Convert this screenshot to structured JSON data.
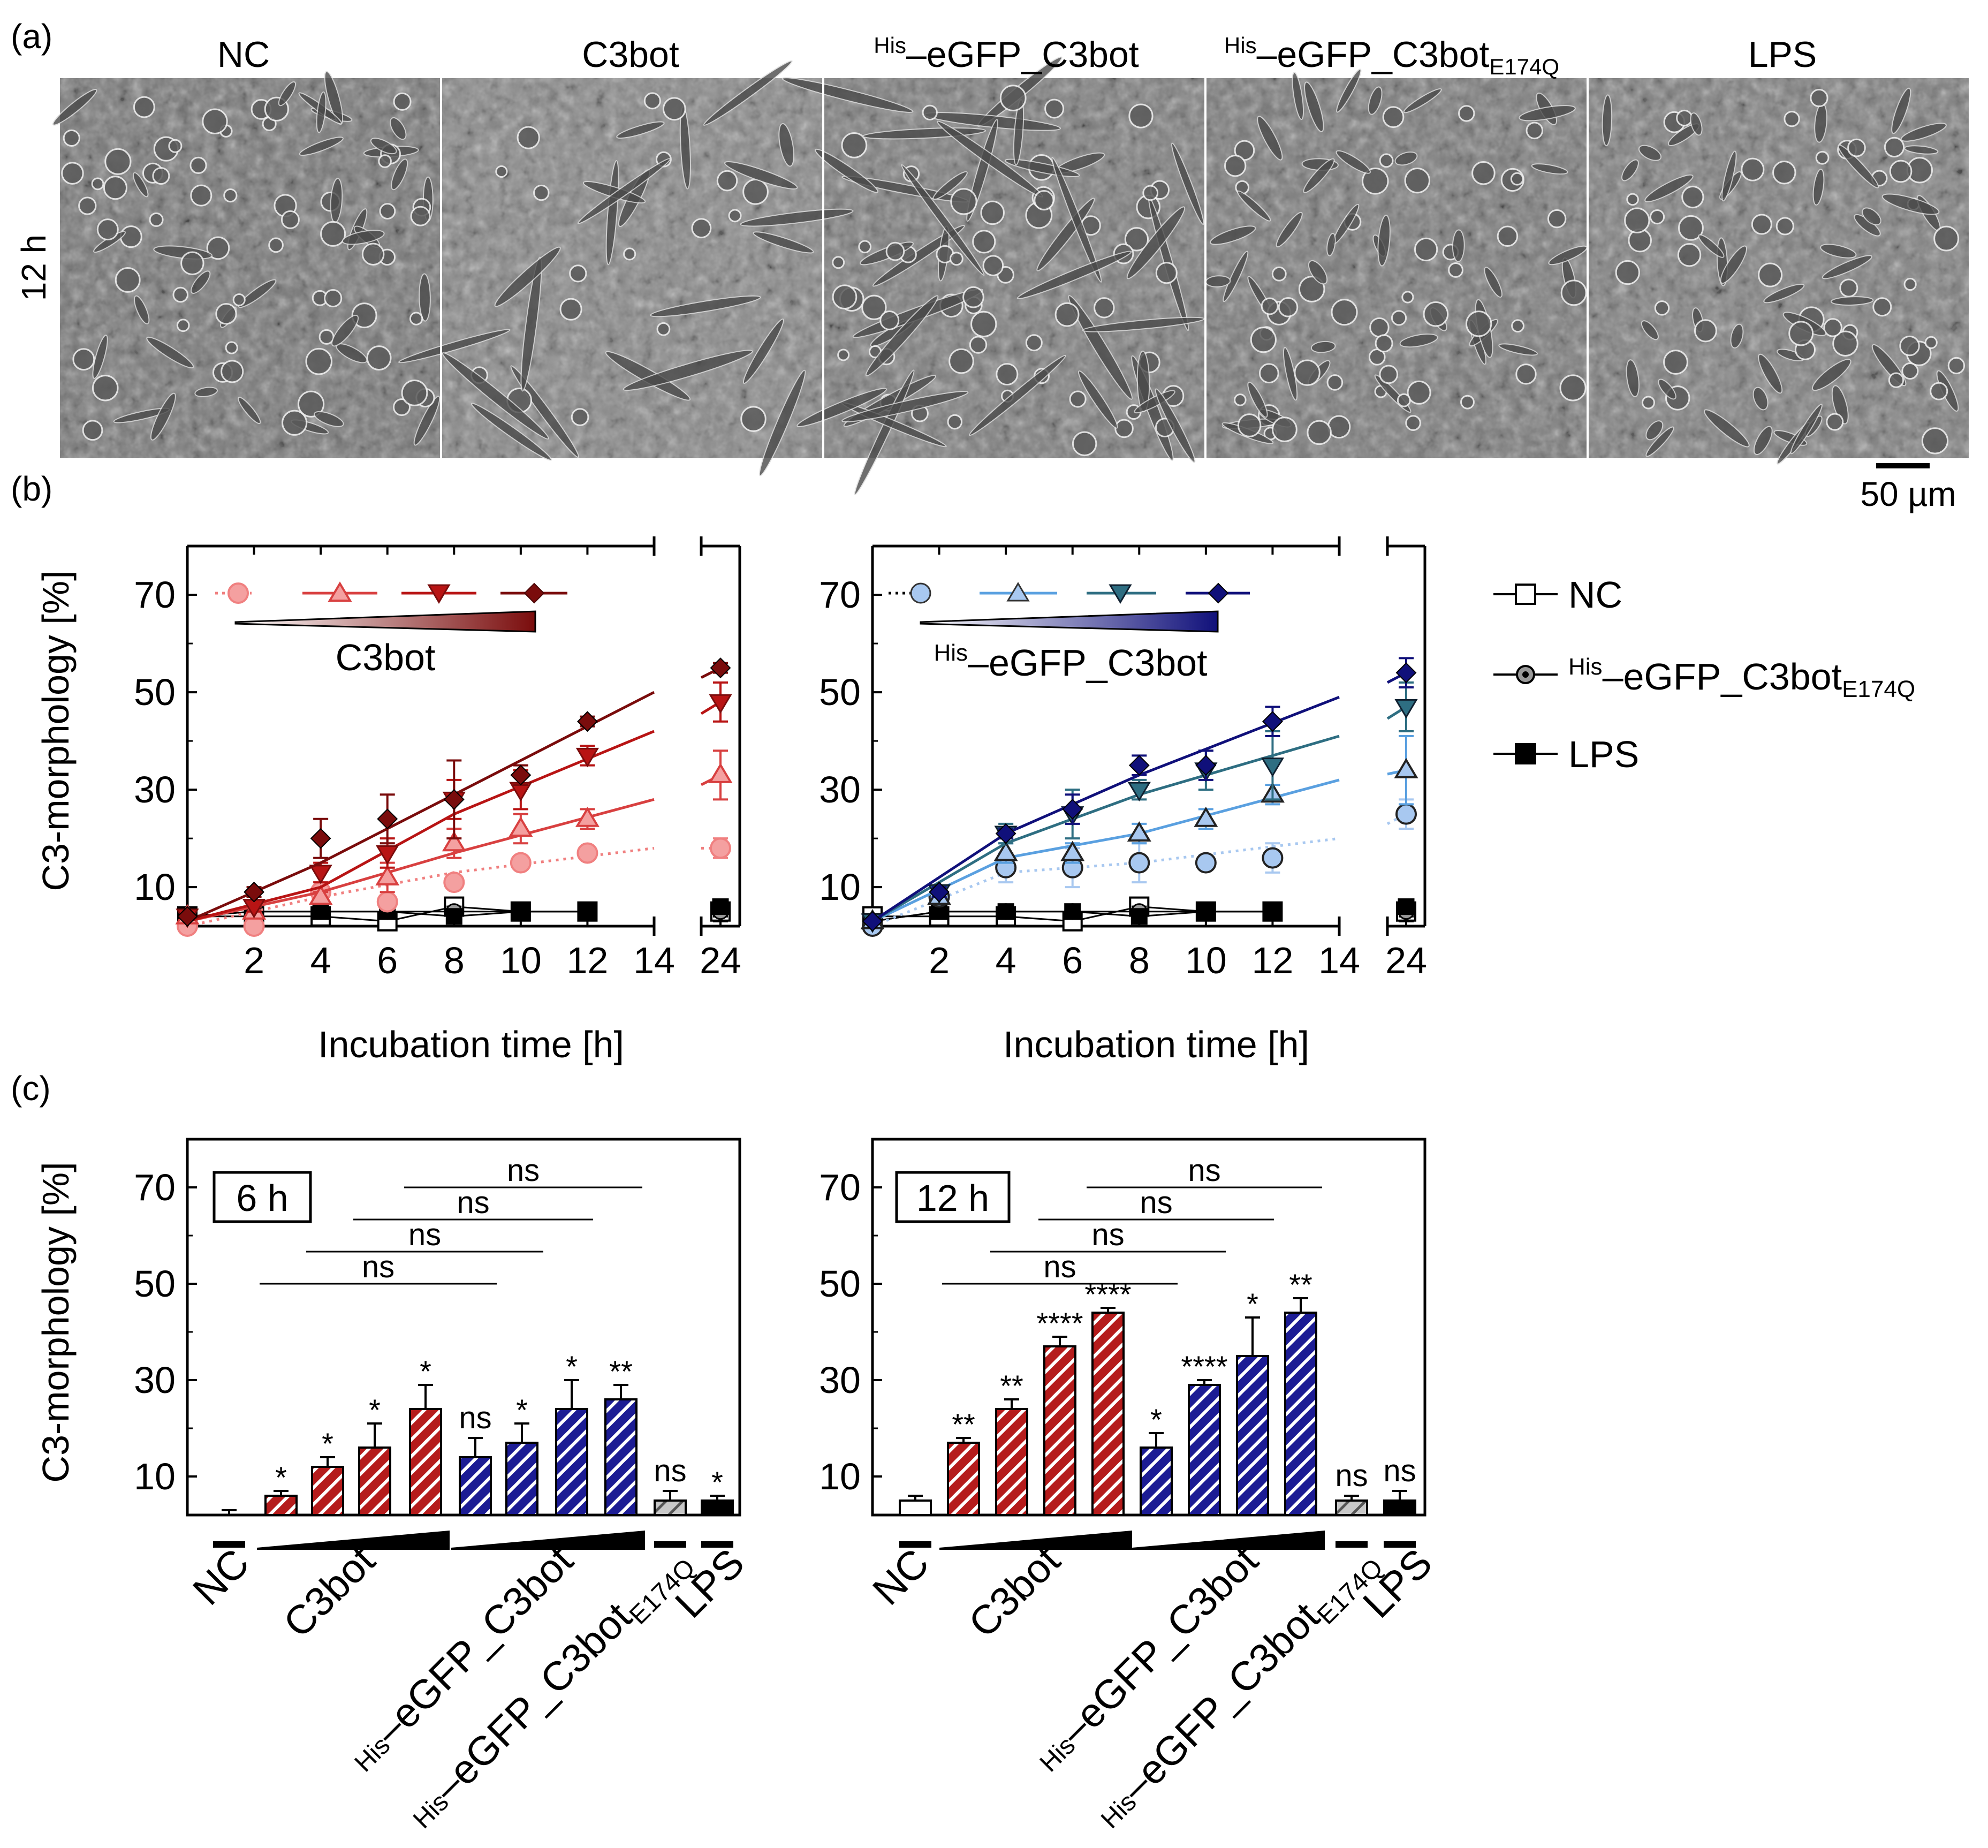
{
  "labels": {
    "panel_a": "(a)",
    "panel_b": "(b)",
    "panel_c": "(c)",
    "row_label": "12 h",
    "scale_bar": "50 µm",
    "his": "His",
    "dash": "–",
    "egfp": "eGFP_C3bot",
    "e174q": "E174Q",
    "c3bot": "C3bot",
    "nc": "NC",
    "lps": "LPS",
    "ylabel": "C3-morphology [%]",
    "xlabel": "Incubation time [h]"
  },
  "colors": {
    "red_1": "#f08080",
    "red_2": "#d84040",
    "red_3": "#b81414",
    "red_4": "#7a0c0c",
    "blue_1": "#a8c8f0",
    "blue_2": "#5aa0e0",
    "blue_3": "#2e6e82",
    "blue_4": "#10107a",
    "red_bar": "#b51c1c",
    "blue_bar": "#1c1c94",
    "grey_bar": "#b4b4b4"
  },
  "micrographs": [
    {
      "label": "NC"
    },
    {
      "label": "C3bot"
    },
    {
      "label": "eGFP_C3bot",
      "prefix": "His"
    },
    {
      "label": "eGFP_C3bot",
      "prefix": "His",
      "subscript": "E174Q"
    },
    {
      "label": "LPS"
    }
  ],
  "chart_data": [
    {
      "type": "line",
      "panel": "(b) left",
      "title": "C3bot",
      "xlabel": "Incubation time [h]",
      "ylabel": "C3-morphology [%]",
      "xlim": [
        0,
        14
      ],
      "xbreak_ticks": [
        24
      ],
      "ylim": [
        2,
        80
      ],
      "xticks": [
        2,
        4,
        6,
        8,
        10,
        12,
        14
      ],
      "yticks": [
        10,
        30,
        50,
        70
      ],
      "series": [
        {
          "name": "C3bot dose 1",
          "color_key": "red_1",
          "marker": "circle",
          "style": "dotted",
          "x": [
            0,
            2,
            4,
            6,
            8,
            10,
            12,
            24
          ],
          "y": [
            2,
            2,
            9,
            7,
            11,
            15,
            17,
            18
          ],
          "err": [
            0,
            0,
            1,
            1,
            1,
            1,
            1,
            2
          ],
          "fit": [
            [
              0,
              2
            ],
            [
              4,
              8
            ],
            [
              8,
              13
            ],
            [
              14,
              18
            ],
            [
              24,
              18
            ]
          ]
        },
        {
          "name": "C3bot dose 2",
          "color_key": "red_2",
          "marker": "triangle-up",
          "style": "solid",
          "x": [
            0,
            2,
            4,
            6,
            8,
            10,
            12,
            24
          ],
          "y": [
            4,
            5,
            8,
            12,
            19,
            22,
            24,
            33
          ],
          "err": [
            0,
            1,
            1,
            3,
            3,
            3,
            2,
            5
          ],
          "fit": [
            [
              0,
              3
            ],
            [
              4,
              9
            ],
            [
              8,
              17
            ],
            [
              14,
              28
            ],
            [
              24,
              33
            ]
          ]
        },
        {
          "name": "C3bot dose 3",
          "color_key": "red_3",
          "marker": "triangle-down",
          "style": "solid",
          "x": [
            0,
            2,
            4,
            6,
            8,
            10,
            12,
            24
          ],
          "y": [
            4,
            6,
            13,
            17,
            28,
            30,
            37,
            48
          ],
          "err": [
            0,
            1,
            2,
            3,
            4,
            4,
            2,
            4
          ],
          "fit": [
            [
              0,
              3
            ],
            [
              4,
              10
            ],
            [
              8,
              25
            ],
            [
              14,
              42
            ],
            [
              24,
              48
            ]
          ]
        },
        {
          "name": "C3bot dose 4",
          "color_key": "red_4",
          "marker": "diamond",
          "style": "solid",
          "x": [
            0,
            2,
            4,
            6,
            8,
            10,
            12,
            24
          ],
          "y": [
            4,
            9,
            20,
            24,
            28,
            33,
            44,
            55
          ],
          "err": [
            0,
            1,
            4,
            5,
            8,
            2,
            1,
            1
          ],
          "fit": [
            [
              0,
              3
            ],
            [
              4,
              15
            ],
            [
              8,
              29
            ],
            [
              14,
              50
            ],
            [
              24,
              55
            ]
          ]
        },
        {
          "name": "NC",
          "color_key": "black",
          "marker": "square-open",
          "style": "solid",
          "x": [
            0,
            2,
            4,
            6,
            8,
            10,
            12,
            24
          ],
          "y": [
            4,
            4,
            4,
            3,
            6,
            5,
            5,
            5
          ],
          "err": [
            1,
            1,
            2,
            1,
            1,
            1,
            1,
            2
          ]
        },
        {
          "name": "His–eGFP_C3bot E174Q",
          "color_key": "black",
          "marker": "circle-dot",
          "style": "solid",
          "x": [
            0,
            2,
            4,
            6,
            8,
            10,
            12,
            24
          ],
          "y": [
            4,
            5,
            5,
            5,
            5,
            5,
            5,
            5
          ],
          "err": [
            1,
            1,
            1,
            1,
            1,
            1,
            1,
            1
          ]
        },
        {
          "name": "LPS",
          "color_key": "black",
          "marker": "square-filled",
          "style": "solid",
          "x": [
            0,
            2,
            4,
            6,
            8,
            10,
            12,
            24
          ],
          "y": [
            4,
            5,
            5,
            5,
            4,
            5,
            5,
            6
          ],
          "err": [
            1,
            1,
            1,
            1,
            1,
            1,
            1,
            1
          ]
        }
      ]
    },
    {
      "type": "line",
      "panel": "(b) right",
      "title": "His–eGFP_C3bot",
      "xlabel": "Incubation time [h]",
      "ylabel": "",
      "xlim": [
        0,
        14
      ],
      "xbreak_ticks": [
        24
      ],
      "ylim": [
        2,
        80
      ],
      "xticks": [
        2,
        4,
        6,
        8,
        10,
        12,
        14
      ],
      "yticks": [
        10,
        30,
        50,
        70
      ],
      "series": [
        {
          "name": "His–eGFP_C3bot dose 1",
          "color_key": "blue_1",
          "marker": "circle",
          "style": "dotted",
          "x": [
            0,
            2,
            4,
            6,
            8,
            10,
            12,
            24
          ],
          "y": [
            2,
            8,
            14,
            14,
            15,
            15,
            16,
            25
          ],
          "err": [
            0,
            1,
            3,
            4,
            4,
            1,
            3,
            3
          ],
          "fit": [
            [
              0,
              2
            ],
            [
              4,
              13
            ],
            [
              8,
              15
            ],
            [
              14,
              20
            ],
            [
              24,
              25
            ]
          ]
        },
        {
          "name": "His–eGFP_C3bot dose 2",
          "color_key": "blue_2",
          "marker": "triangle-up",
          "style": "solid",
          "x": [
            0,
            2,
            4,
            6,
            8,
            10,
            12,
            24
          ],
          "y": [
            3,
            8,
            17,
            17,
            21,
            24,
            29,
            34
          ],
          "err": [
            0,
            1,
            2,
            2,
            2,
            2,
            2,
            7
          ],
          "fit": [
            [
              0,
              3
            ],
            [
              4,
              16
            ],
            [
              8,
              21
            ],
            [
              14,
              32
            ],
            [
              24,
              34
            ]
          ]
        },
        {
          "name": "His–eGFP_C3bot dose 3",
          "color_key": "blue_3",
          "marker": "triangle-down",
          "style": "solid",
          "x": [
            0,
            2,
            4,
            6,
            8,
            10,
            12,
            24
          ],
          "y": [
            3,
            9,
            21,
            25,
            30,
            34,
            35,
            47
          ],
          "err": [
            0,
            1,
            2,
            5,
            2,
            4,
            7,
            5
          ],
          "fit": [
            [
              0,
              3
            ],
            [
              4,
              19
            ],
            [
              8,
              29
            ],
            [
              14,
              41
            ],
            [
              24,
              47
            ]
          ]
        },
        {
          "name": "His–eGFP_C3bot dose 4",
          "color_key": "blue_4",
          "marker": "diamond",
          "style": "solid",
          "x": [
            0,
            2,
            4,
            6,
            8,
            10,
            12,
            24
          ],
          "y": [
            3,
            9,
            21,
            26,
            35,
            35,
            44,
            54
          ],
          "err": [
            0,
            1,
            1,
            3,
            2,
            3,
            3,
            3
          ],
          "fit": [
            [
              0,
              3
            ],
            [
              4,
              21
            ],
            [
              8,
              33
            ],
            [
              14,
              49
            ],
            [
              24,
              54
            ]
          ]
        },
        {
          "name": "NC",
          "color_key": "black",
          "marker": "square-open",
          "style": "solid",
          "x": [
            0,
            2,
            4,
            6,
            8,
            10,
            12,
            24
          ],
          "y": [
            4,
            4,
            4,
            3,
            6,
            5,
            5,
            5
          ],
          "err": [
            1,
            1,
            2,
            1,
            1,
            1,
            1,
            2
          ]
        },
        {
          "name": "His–eGFP_C3bot E174Q",
          "color_key": "black",
          "marker": "circle-dot",
          "style": "solid",
          "x": [
            0,
            2,
            4,
            6,
            8,
            10,
            12,
            24
          ],
          "y": [
            3,
            5,
            5,
            5,
            5,
            5,
            5,
            5
          ],
          "err": [
            1,
            1,
            1,
            1,
            1,
            1,
            1,
            1
          ]
        },
        {
          "name": "LPS",
          "color_key": "black",
          "marker": "square-filled",
          "style": "solid",
          "x": [
            0,
            2,
            4,
            6,
            8,
            10,
            12,
            24
          ],
          "y": [
            3,
            5,
            5,
            5,
            4,
            5,
            5,
            6
          ],
          "err": [
            1,
            1,
            1,
            1,
            1,
            1,
            1,
            1
          ]
        }
      ]
    },
    {
      "type": "bar",
      "panel": "(c) left",
      "title": "6 h",
      "ylabel": "C3-morphology [%]",
      "ylim": [
        2,
        80
      ],
      "yticks": [
        10,
        30,
        50,
        70
      ],
      "categories": [
        "NC",
        "C3bot 1",
        "C3bot 2",
        "C3bot 3",
        "C3bot 4",
        "eGFP 1",
        "eGFP 2",
        "eGFP 3",
        "eGFP 4",
        "E174Q",
        "LPS"
      ],
      "values": [
        2,
        6,
        12,
        16,
        24,
        14,
        17,
        24,
        26,
        5,
        5
      ],
      "errors": [
        1,
        1,
        2,
        5,
        5,
        4,
        4,
        6,
        3,
        2,
        1
      ],
      "stars": [
        "",
        "*",
        "*",
        "*",
        "*",
        "ns",
        "*",
        "*",
        "**",
        "ns",
        "*"
      ],
      "comparisons": [
        {
          "from": 1,
          "to": 5,
          "label": "ns"
        },
        {
          "from": 2,
          "to": 6,
          "label": "ns"
        },
        {
          "from": 3,
          "to": 7,
          "label": "ns"
        },
        {
          "from": 4,
          "to": 8,
          "label": "ns"
        }
      ],
      "group_labels": [
        "NC",
        "C3bot",
        "His–eGFP_C3bot",
        "His–eGFP_C3bot E174Q",
        "LPS"
      ]
    },
    {
      "type": "bar",
      "panel": "(c) right",
      "title": "12 h",
      "ylabel": "",
      "ylim": [
        2,
        80
      ],
      "yticks": [
        10,
        30,
        50,
        70
      ],
      "categories": [
        "NC",
        "C3bot 1",
        "C3bot 2",
        "C3bot 3",
        "C3bot 4",
        "eGFP 1",
        "eGFP 2",
        "eGFP 3",
        "eGFP 4",
        "E174Q",
        "LPS"
      ],
      "values": [
        5,
        17,
        24,
        37,
        44,
        16,
        29,
        35,
        44,
        5,
        5
      ],
      "errors": [
        1,
        1,
        2,
        2,
        1,
        3,
        1,
        8,
        3,
        1,
        2
      ],
      "stars": [
        "",
        "**",
        "**",
        "****",
        "****",
        "*",
        "****",
        "*",
        "**",
        "ns",
        "ns"
      ],
      "comparisons": [
        {
          "from": 1,
          "to": 5,
          "label": "ns"
        },
        {
          "from": 2,
          "to": 6,
          "label": "ns"
        },
        {
          "from": 3,
          "to": 7,
          "label": "ns"
        },
        {
          "from": 4,
          "to": 8,
          "label": "ns"
        }
      ],
      "group_labels": [
        "NC",
        "C3bot",
        "His–eGFP_C3bot",
        "His–eGFP_C3bot E174Q",
        "LPS"
      ]
    }
  ]
}
